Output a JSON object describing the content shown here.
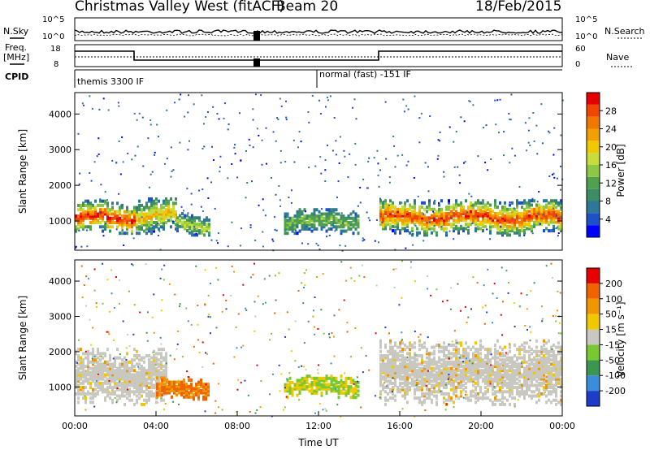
{
  "header": {
    "station": "Christmas Valley West (fitACF)",
    "beam": "Beam 20",
    "date": "18/Feb/2015"
  },
  "top_panels": {
    "nsky_label": "N.Sky",
    "nsky_ticks": [
      "10^5",
      "10^0"
    ],
    "nsearch_label": "N.Search",
    "nsearch_ticks": [
      "10^5",
      "10^0"
    ],
    "freq_label": "Freq.",
    "freq_unit": "[MHz]",
    "freq_ticks": [
      "18",
      "8"
    ],
    "nave_label": "Nave",
    "nave_ticks": [
      "60",
      "0"
    ],
    "cpid_label": "CPID",
    "cpid_text_1": "themis 3300 IF",
    "cpid_text_2": "normal (fast) -151 IF"
  },
  "chart_data": [
    {
      "type": "heatmap",
      "name": "power",
      "ylabel": "Slant Range [km]",
      "xlabel": "",
      "xlim": [
        0,
        24
      ],
      "ylim": [
        180,
        4600
      ],
      "y_ticks": [
        "1000",
        "2000",
        "3000",
        "4000"
      ],
      "colorbar": {
        "label": "Power [dB]",
        "ticks": [
          "4",
          "8",
          "12",
          "16",
          "20",
          "24",
          "28"
        ],
        "colors": [
          "#0000ff",
          "#1e50c8",
          "#2d7896",
          "#3c8c64",
          "#50a050",
          "#8cc846",
          "#c8dc3c",
          "#f0c800",
          "#f0a000",
          "#f07800",
          "#f04600",
          "#e60000"
        ]
      },
      "bands": [
        {
          "from": 0.0,
          "to": 3.0,
          "center": 1150,
          "width": 450,
          "intensity": 0.9
        },
        {
          "from": 3.0,
          "to": 5.0,
          "center": 1200,
          "width": 500,
          "intensity": 0.6
        },
        {
          "from": 5.0,
          "to": 6.6,
          "center": 950,
          "width": 300,
          "intensity": 0.45
        },
        {
          "from": 10.3,
          "to": 14.0,
          "center": 1050,
          "width": 350,
          "intensity": 0.35
        },
        {
          "from": 15.0,
          "to": 24.0,
          "center": 1150,
          "width": 500,
          "intensity": 0.85
        }
      ]
    },
    {
      "type": "heatmap",
      "name": "velocity",
      "ylabel": "Slant Range [km]",
      "xlabel": "Time UT",
      "xlim": [
        0,
        24
      ],
      "ylim": [
        180,
        4600
      ],
      "y_ticks": [
        "1000",
        "2000",
        "3000",
        "4000"
      ],
      "x_ticks": [
        "00:00",
        "04:00",
        "08:00",
        "12:00",
        "16:00",
        "20:00",
        "00:00"
      ],
      "colorbar": {
        "label": "Velocity [m s⁻¹]",
        "ticks": [
          "200",
          "100",
          "50",
          "15",
          "-15",
          "-50",
          "-100",
          "-200"
        ],
        "colors": [
          "#1e3cc8",
          "#3c8cdc",
          "#3c9650",
          "#78c832",
          "#c8c8c0",
          "#f0c800",
          "#f09600",
          "#f06400",
          "#e60000"
        ]
      },
      "bands": [
        {
          "from": 0.0,
          "to": 4.5,
          "center": 1350,
          "width": 800,
          "kind": "ground"
        },
        {
          "from": 4.0,
          "to": 6.6,
          "center": 1000,
          "width": 300,
          "kind": "away"
        },
        {
          "from": 10.3,
          "to": 14.0,
          "center": 1050,
          "width": 300,
          "kind": "mixed"
        },
        {
          "from": 15.0,
          "to": 24.0,
          "center": 1450,
          "width": 900,
          "kind": "ground"
        }
      ]
    }
  ]
}
